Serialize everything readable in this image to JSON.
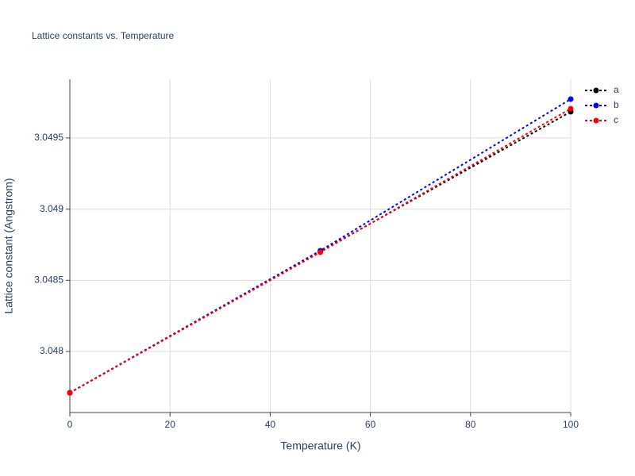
{
  "chart_data": {
    "type": "line",
    "title": "Lattice constants vs. Temperature",
    "x_label": "Temperature (K)",
    "y_label": "Lattice constant (Angstrom)",
    "x": [
      0,
      50,
      100
    ],
    "series": [
      {
        "name": "a",
        "color": "#000000",
        "values": [
          3.04771,
          3.048702,
          3.049684
        ]
      },
      {
        "name": "b",
        "color": "#0000ff",
        "values": [
          3.04771,
          3.048708,
          3.049773
        ]
      },
      {
        "name": "c",
        "color": "#ff0000",
        "values": [
          3.04771,
          3.048697,
          3.049706
        ]
      }
    ],
    "xlim": [
      0,
      100
    ],
    "xticks": [
      0,
      20,
      40,
      60,
      80,
      100
    ],
    "ylim": [
      3.047571,
      3.049912
    ],
    "yticks": [
      3.048,
      3.0485,
      3.049,
      3.0495
    ],
    "grid": true
  }
}
